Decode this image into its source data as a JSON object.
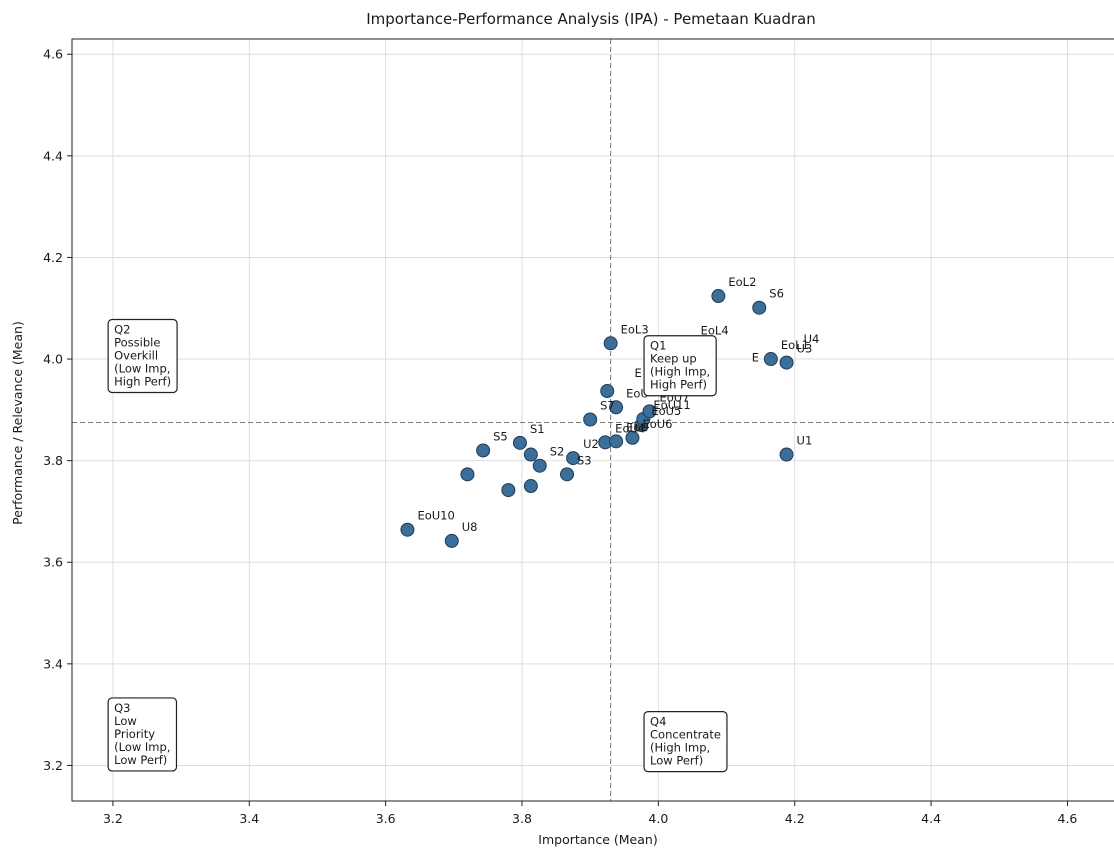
{
  "chart_data": {
    "type": "scatter",
    "title": "Importance-Performance Analysis (IPA) - Pemetaan Kuadran",
    "xlabel": "Importance (Mean)",
    "ylabel": "Performance / Relevance (Mean)",
    "xlim": [
      3.14,
      4.68
    ],
    "ylim": [
      3.13,
      4.63
    ],
    "x_ticks": [
      "3.2",
      "3.4",
      "3.6",
      "3.8",
      "4.0",
      "4.2",
      "4.4",
      "4.6"
    ],
    "y_ticks": [
      "3.2",
      "3.4",
      "3.6",
      "3.8",
      "4.0",
      "4.2",
      "4.4",
      "4.6"
    ],
    "grid": true,
    "mean_lines": {
      "x": 3.93,
      "y": 3.875
    },
    "marker_color": "#3b6e99",
    "marker_edge_color": "#1f3b57",
    "points": [
      {
        "x": 3.632,
        "y": 3.664,
        "label": "EoU10"
      },
      {
        "x": 3.697,
        "y": 3.642,
        "label": "U8"
      },
      {
        "x": 3.72,
        "y": 3.773,
        "label": ""
      },
      {
        "x": 3.743,
        "y": 3.82,
        "label": "S5"
      },
      {
        "x": 3.78,
        "y": 3.742,
        "label": ""
      },
      {
        "x": 3.797,
        "y": 3.835,
        "label": "S1"
      },
      {
        "x": 3.813,
        "y": 3.812,
        "label": ""
      },
      {
        "x": 3.813,
        "y": 3.75,
        "label": ""
      },
      {
        "x": 3.826,
        "y": 3.79,
        "label": "S2"
      },
      {
        "x": 3.866,
        "y": 3.773,
        "label": "S3"
      },
      {
        "x": 3.875,
        "y": 3.805,
        "label": "U2"
      },
      {
        "x": 3.9,
        "y": 3.881,
        "label": "S7"
      },
      {
        "x": 3.922,
        "y": 3.836,
        "label": "EoU4"
      },
      {
        "x": 3.925,
        "y": 3.937,
        "label": ""
      },
      {
        "x": 3.93,
        "y": 4.031,
        "label": "EoL3"
      },
      {
        "x": 3.938,
        "y": 3.905,
        "label": "EoU"
      },
      {
        "x": 3.938,
        "y": 3.838,
        "label": "EoU"
      },
      {
        "x": 3.962,
        "y": 3.845,
        "label": "EoU6"
      },
      {
        "x": 3.975,
        "y": 3.87,
        "label": "EoU5"
      },
      {
        "x": 3.978,
        "y": 3.882,
        "label": "EoU11"
      },
      {
        "x": 3.987,
        "y": 3.897,
        "label": "EoU7"
      },
      {
        "x": 4.088,
        "y": 4.124,
        "label": "EoL2"
      },
      {
        "x": 4.148,
        "y": 4.101,
        "label": "S6"
      },
      {
        "x": 4.165,
        "y": 4.0,
        "label": "EoL1"
      },
      {
        "x": 4.188,
        "y": 3.993,
        "label": "U3"
      },
      {
        "x": 4.188,
        "y": 3.812,
        "label": "U1"
      }
    ],
    "extra_labels": [
      {
        "x": 3.965,
        "y": 3.965,
        "text": "E"
      },
      {
        "x": 4.062,
        "y": 4.048,
        "text": "EoL4"
      },
      {
        "x": 4.137,
        "y": 3.995,
        "text": "E"
      },
      {
        "x": 4.213,
        "y": 4.032,
        "text": "U4"
      }
    ],
    "quadrant_boxes": [
      {
        "x": 3.193,
        "y": 4.07,
        "lines": [
          "Q2",
          "Possible",
          "Overkill",
          "(Low Imp,",
          "High Perf)"
        ]
      },
      {
        "x": 3.979,
        "y": 4.038,
        "lines": [
          "Q1",
          "Keep up",
          "(High Imp,",
          "High Perf)"
        ]
      },
      {
        "x": 3.193,
        "y": 3.325,
        "lines": [
          "Q3",
          "Low",
          "Priority",
          "(Low Imp,",
          "Low Perf)"
        ]
      },
      {
        "x": 3.979,
        "y": 3.298,
        "lines": [
          "Q4",
          "Concentrate",
          "(High Imp,",
          "Low Perf)"
        ]
      }
    ]
  }
}
